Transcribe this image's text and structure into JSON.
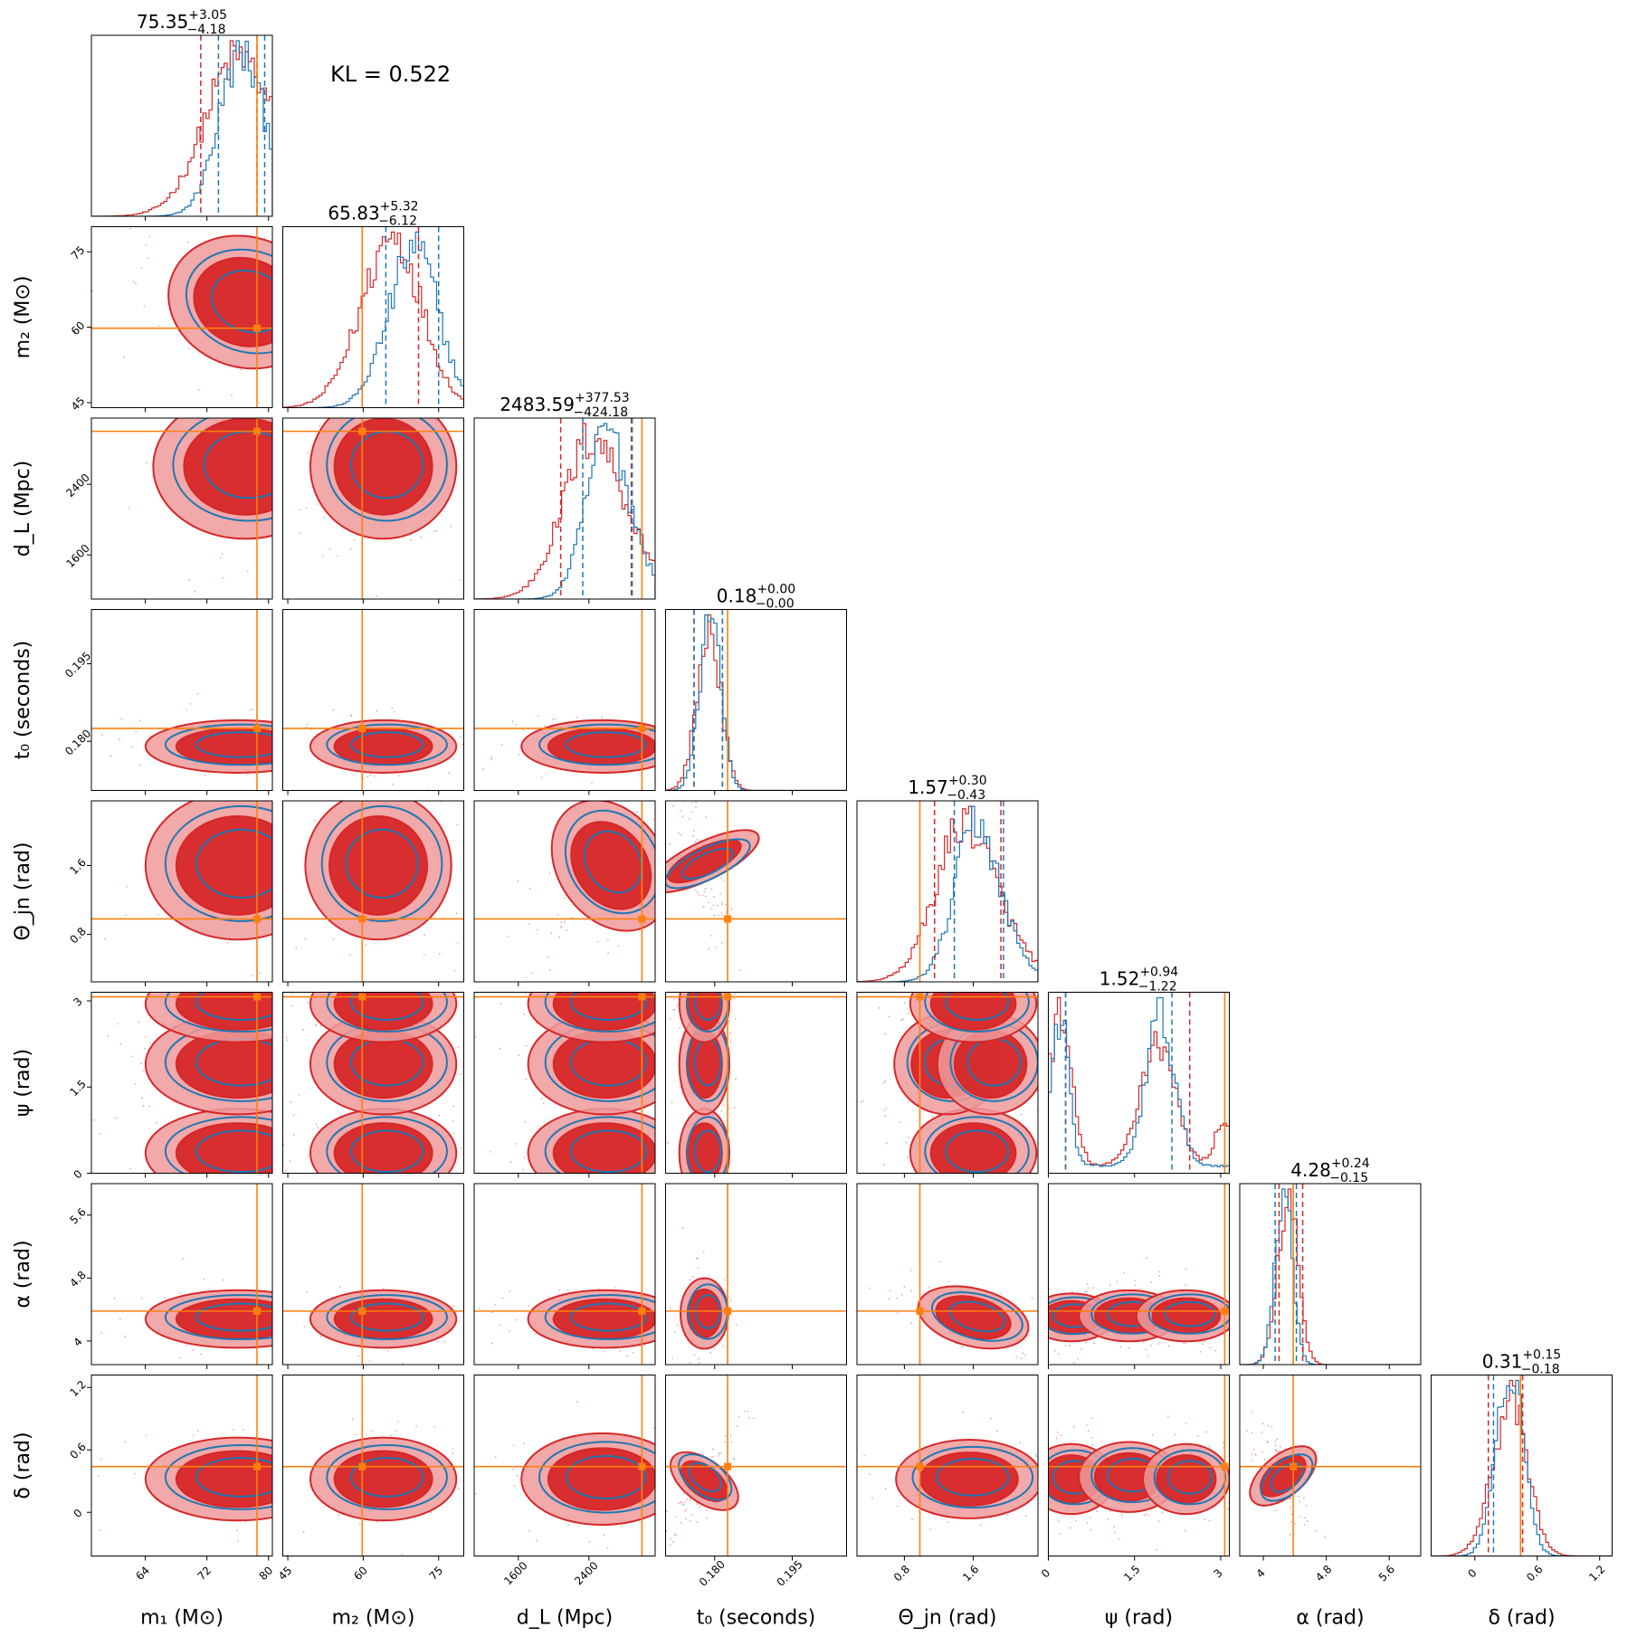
{
  "chart_data": {
    "type": "corner",
    "annotation": "KL = 0.522",
    "colors": {
      "red": "#d62728",
      "red_fill_dark": "#d62728",
      "red_fill_light": "#ef9a9b",
      "blue": "#1f77b4",
      "truth": "#ff7f0e"
    },
    "series": [
      {
        "name": "",
        "color": "#d62728"
      },
      {
        "name": "",
        "color": "#1f77b4"
      }
    ],
    "parameters": [
      {
        "key": "m1",
        "label": "m₁ (M⊙)",
        "range": [
          57,
          80.5
        ],
        "ticks": [
          64,
          72,
          80
        ],
        "truth": 78.5,
        "title": {
          "median": "75.35",
          "plus": "+3.05",
          "minus": "−4.18"
        },
        "red_q": [
          71.2,
          78.5
        ],
        "blue_q": [
          73.5,
          79.5
        ],
        "red_mean": 77.6,
        "red_sd": 5.0,
        "blue_mean": 77.4,
        "blue_sd": 3.3
      },
      {
        "key": "m2",
        "label": "m₂ (M⊙)",
        "range": [
          44,
          80
        ],
        "ticks": [
          45,
          60,
          75
        ],
        "truth": 59.8,
        "title": {
          "median": "65.83",
          "plus": "+5.32",
          "minus": "−6.12"
        },
        "red_q": [
          59.8,
          71.0
        ],
        "blue_q": [
          64.5,
          75.0
        ],
        "red_mean": 65.0,
        "red_sd": 6.0,
        "blue_mean": 69.5,
        "blue_sd": 5.0
      },
      {
        "key": "dL",
        "label": "d_L (Mpc)",
        "range": [
          1100,
          3150
        ],
        "ticks": [
          1600,
          2400
        ],
        "truth": 3000,
        "title": {
          "median": "2483.59",
          "plus": "+377.53",
          "minus": "−424.18"
        },
        "red_q": [
          2080,
          2880
        ],
        "blue_q": [
          2330,
          2890
        ],
        "red_mean": 2560,
        "red_sd": 380,
        "blue_mean": 2680,
        "blue_sd": 260
      },
      {
        "key": "t0",
        "label": "t₀ (seconds)",
        "range": [
          0.1705,
          0.2055
        ],
        "ticks": [
          0.18,
          0.195
        ],
        "tick_labels": [
          "0.180",
          "0.195"
        ],
        "truth": 0.1825,
        "title": {
          "median": "0.18",
          "plus": "+0.00",
          "minus": "−0.00"
        },
        "red_q": [
          0.176,
          0.1815
        ],
        "blue_q": [
          0.176,
          0.1815
        ],
        "red_mean": 0.1787,
        "red_sd": 0.0023,
        "blue_mean": 0.179,
        "blue_sd": 0.002
      },
      {
        "key": "theta",
        "label": "Θ_jn (rad)",
        "range": [
          0.25,
          2.35
        ],
        "ticks": [
          0.8,
          1.6
        ],
        "truth": 0.98,
        "title": {
          "median": "1.57",
          "plus": "+0.30",
          "minus": "−0.43"
        },
        "red_q": [
          1.15,
          1.92
        ],
        "blue_q": [
          1.38,
          1.95
        ],
        "red_mean": 1.62,
        "red_sd": 0.38,
        "blue_mean": 1.72,
        "blue_sd": 0.28
      },
      {
        "key": "psi",
        "label": "ψ (rad)",
        "range": [
          0.0,
          3.15
        ],
        "ticks": [
          0.0,
          1.5,
          3.0
        ],
        "truth": 3.07,
        "title": {
          "median": "1.52",
          "plus": "+0.94",
          "minus": "−1.22"
        },
        "red_q": [
          0.3,
          2.46
        ],
        "blue_q": [
          0.3,
          2.15
        ],
        "red_mean": 1.5,
        "red_sd": 0.9,
        "blue_mean": 1.6,
        "blue_sd": 0.9
      },
      {
        "key": "alpha",
        "label": "α (rad)",
        "range": [
          3.7,
          6.0
        ],
        "ticks": [
          4.0,
          4.8,
          5.6
        ],
        "truth": 4.38,
        "title": {
          "median": "4.28",
          "plus": "+0.24",
          "minus": "−0.15"
        },
        "red_q": [
          4.2,
          4.5
        ],
        "blue_q": [
          4.15,
          4.42
        ],
        "red_mean": 4.3,
        "red_sd": 0.13,
        "blue_mean": 4.25,
        "blue_sd": 0.11
      },
      {
        "key": "delta",
        "label": "δ (rad)",
        "range": [
          -0.42,
          1.32
        ],
        "ticks": [
          0.0,
          0.6,
          1.2
        ],
        "truth": 0.44,
        "title": {
          "median": "0.31",
          "plus": "+0.15",
          "minus": "−0.18"
        },
        "red_q": [
          0.13,
          0.46
        ],
        "blue_q": [
          0.18,
          0.44
        ],
        "red_mean": 0.32,
        "red_sd": 0.17,
        "blue_mean": 0.33,
        "blue_sd": 0.13
      }
    ],
    "pair_centers": {
      "1-0": [
        [
          77,
          65,
          5,
          6,
          -0.4
        ]
      ],
      "2-0": [
        [
          77,
          2600,
          5,
          380,
          0.0
        ]
      ],
      "2-1": [
        [
          64,
          2600,
          6,
          380,
          0.0
        ]
      ],
      "3-0": [
        [
          76,
          0.179,
          5,
          0.0022,
          0.0
        ]
      ],
      "3-1": [
        [
          64,
          0.179,
          6,
          0.0022,
          0.0
        ]
      ],
      "3-2": [
        [
          2550,
          0.179,
          380,
          0.0022,
          0.0
        ]
      ],
      "4-0": [
        [
          76,
          1.6,
          5,
          0.4,
          0.0
        ]
      ],
      "4-1": [
        [
          63,
          1.6,
          6,
          0.4,
          0.0
        ]
      ],
      "4-2": [
        [
          2650,
          1.6,
          320,
          0.38,
          0.6
        ]
      ],
      "4-3": [
        [
          0.178,
          1.65,
          0.0018,
          0.32,
          -0.7
        ]
      ],
      "5-0": [
        [
          76,
          0.35,
          5,
          0.35,
          0.0
        ],
        [
          76,
          1.9,
          5,
          0.4,
          0.0
        ],
        [
          76,
          2.95,
          5,
          0.3,
          0.0
        ]
      ],
      "5-1": [
        [
          64,
          0.35,
          6,
          0.35,
          0.0
        ],
        [
          64,
          1.9,
          6,
          0.4,
          0.0
        ],
        [
          64,
          2.95,
          6,
          0.3,
          0.0
        ]
      ],
      "5-2": [
        [
          2580,
          0.35,
          360,
          0.35,
          0.0
        ],
        [
          2580,
          1.9,
          360,
          0.4,
          0.0
        ],
        [
          2580,
          2.95,
          360,
          0.3,
          0.0
        ]
      ],
      "5-3": [
        [
          0.178,
          0.35,
          0.0018,
          0.35,
          0.0
        ],
        [
          0.178,
          1.9,
          0.0018,
          0.4,
          0.0
        ],
        [
          0.178,
          2.95,
          0.0018,
          0.3,
          0.0
        ]
      ],
      "5-4": [
        [
          1.6,
          0.35,
          0.3,
          0.35,
          0.0
        ],
        [
          1.3,
          1.9,
          0.25,
          0.4,
          0.0
        ],
        [
          1.8,
          1.9,
          0.25,
          0.4,
          0.0
        ],
        [
          1.6,
          2.95,
          0.3,
          0.3,
          0.0
        ]
      ],
      "6-0": [
        [
          76,
          4.28,
          5,
          0.16,
          0.0
        ]
      ],
      "6-1": [
        [
          64,
          4.28,
          6,
          0.16,
          0.0
        ]
      ],
      "6-2": [
        [
          2580,
          4.28,
          360,
          0.16,
          0.0
        ]
      ],
      "6-3": [
        [
          0.178,
          4.35,
          0.0017,
          0.2,
          0.0
        ]
      ],
      "6-4": [
        [
          1.6,
          4.3,
          0.35,
          0.16,
          -0.6
        ]
      ],
      "6-5": [
        [
          0.4,
          4.3,
          0.3,
          0.13,
          0.0
        ],
        [
          1.4,
          4.32,
          0.35,
          0.14,
          0.0
        ],
        [
          2.4,
          4.32,
          0.35,
          0.14,
          0.0
        ]
      ],
      "7-0": [
        [
          76,
          0.32,
          5,
          0.18,
          0.0
        ]
      ],
      "7-1": [
        [
          64,
          0.32,
          6,
          0.18,
          0.0
        ]
      ],
      "7-2": [
        [
          2550,
          0.32,
          380,
          0.2,
          0.0
        ]
      ],
      "7-3": [
        [
          0.178,
          0.3,
          0.0022,
          0.17,
          0.85
        ]
      ],
      "7-4": [
        [
          1.55,
          0.32,
          0.35,
          0.17,
          0.0
        ]
      ],
      "7-5": [
        [
          0.4,
          0.32,
          0.3,
          0.15,
          0.0
        ],
        [
          1.4,
          0.34,
          0.35,
          0.15,
          0.0
        ],
        [
          2.4,
          0.32,
          0.3,
          0.15,
          0.0
        ]
      ],
      "7-6": [
        [
          4.25,
          0.35,
          0.13,
          0.17,
          -0.7
        ]
      ]
    }
  }
}
